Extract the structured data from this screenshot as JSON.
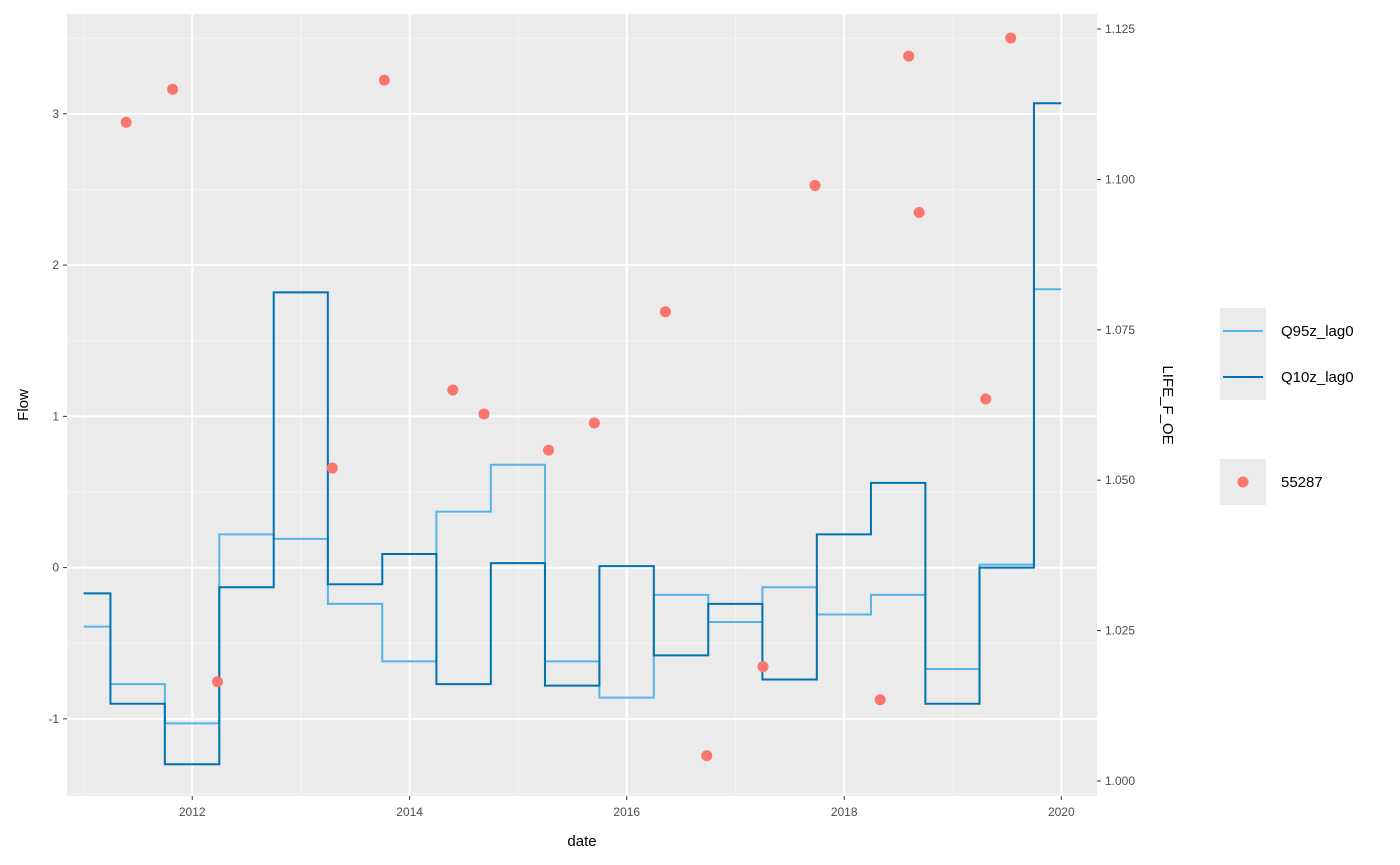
{
  "chart_data": {
    "type": "line",
    "xlabel": "date",
    "ylabel": "Flow",
    "y2label": "LIFE_F_OE",
    "x_range": [
      "2010-11-06",
      "2020-04-30"
    ],
    "x_ticks": [
      {
        "date": "2012-01-01",
        "label": "2012"
      },
      {
        "date": "2014-01-01",
        "label": "2014"
      },
      {
        "date": "2016-01-01",
        "label": "2016"
      },
      {
        "date": "2018-01-01",
        "label": "2018"
      },
      {
        "date": "2020-01-01",
        "label": "2020"
      }
    ],
    "x_minor_ticks": [
      "2011-01-01",
      "2013-01-01",
      "2015-01-01",
      "2017-01-01",
      "2019-01-01"
    ],
    "ylim": [
      -1.51,
      3.66
    ],
    "y_ticks": [
      {
        "value": -1,
        "label": "-1"
      },
      {
        "value": 0,
        "label": "0"
      },
      {
        "value": 1,
        "label": "1"
      },
      {
        "value": 2,
        "label": "2"
      },
      {
        "value": 3,
        "label": "3"
      }
    ],
    "y2lim": [
      0.9975,
      1.1275
    ],
    "y2_ticks": [
      {
        "value": 1.0,
        "label": "1.000"
      },
      {
        "value": 1.025,
        "label": "1.025"
      },
      {
        "value": 1.05,
        "label": "1.050"
      },
      {
        "value": 1.075,
        "label": "1.075"
      },
      {
        "value": 1.1,
        "label": "1.100"
      },
      {
        "value": 1.125,
        "label": "1.125"
      }
    ],
    "grid": true,
    "legend_position": "right",
    "series": [
      {
        "name": "Q95z_lag0",
        "type": "step",
        "axis": "left",
        "color": "#56B4E9",
        "points": [
          {
            "x": "2011-01-01",
            "y": -0.39
          },
          {
            "x": "2011-04-01",
            "y": -0.77
          },
          {
            "x": "2011-10-01",
            "y": -1.03
          },
          {
            "x": "2012-04-01",
            "y": 0.22
          },
          {
            "x": "2012-10-01",
            "y": 0.19
          },
          {
            "x": "2013-04-01",
            "y": -0.24
          },
          {
            "x": "2013-10-01",
            "y": -0.62
          },
          {
            "x": "2014-04-01",
            "y": 0.37
          },
          {
            "x": "2014-10-01",
            "y": 0.68
          },
          {
            "x": "2015-04-01",
            "y": -0.62
          },
          {
            "x": "2015-10-01",
            "y": -0.86
          },
          {
            "x": "2016-04-01",
            "y": -0.18
          },
          {
            "x": "2016-10-01",
            "y": -0.36
          },
          {
            "x": "2017-04-01",
            "y": -0.13
          },
          {
            "x": "2017-10-01",
            "y": -0.31
          },
          {
            "x": "2018-04-01",
            "y": -0.18
          },
          {
            "x": "2018-10-01",
            "y": -0.67
          },
          {
            "x": "2019-04-01",
            "y": 0.02
          },
          {
            "x": "2019-10-01",
            "y": 1.84
          },
          {
            "x": "2020-01-01",
            "y": 1.84
          }
        ]
      },
      {
        "name": "Q10z_lag0",
        "type": "step",
        "axis": "left",
        "color": "#0072B2",
        "points": [
          {
            "x": "2011-01-01",
            "y": -0.17
          },
          {
            "x": "2011-04-01",
            "y": -0.9
          },
          {
            "x": "2011-10-01",
            "y": -1.3
          },
          {
            "x": "2012-04-01",
            "y": -0.13
          },
          {
            "x": "2012-10-01",
            "y": 1.82
          },
          {
            "x": "2013-04-01",
            "y": -0.11
          },
          {
            "x": "2013-10-01",
            "y": 0.09
          },
          {
            "x": "2014-04-01",
            "y": -0.77
          },
          {
            "x": "2014-10-01",
            "y": 0.03
          },
          {
            "x": "2015-04-01",
            "y": -0.78
          },
          {
            "x": "2015-10-01",
            "y": 0.01
          },
          {
            "x": "2016-04-01",
            "y": -0.58
          },
          {
            "x": "2016-10-01",
            "y": -0.24
          },
          {
            "x": "2017-04-01",
            "y": -0.74
          },
          {
            "x": "2017-10-01",
            "y": 0.22
          },
          {
            "x": "2018-04-01",
            "y": 0.56
          },
          {
            "x": "2018-10-01",
            "y": -0.9
          },
          {
            "x": "2019-04-01",
            "y": 0.0
          },
          {
            "x": "2019-10-01",
            "y": 3.07
          },
          {
            "x": "2020-01-01",
            "y": 3.07
          }
        ]
      },
      {
        "name": "55287",
        "type": "scatter",
        "axis": "right",
        "color": "#F8766D",
        "points": [
          {
            "x": "2011-05-24",
            "y": 1.1095
          },
          {
            "x": "2011-10-27",
            "y": 1.115
          },
          {
            "x": "2012-03-26",
            "y": 1.0165
          },
          {
            "x": "2013-04-16",
            "y": 1.052
          },
          {
            "x": "2013-10-08",
            "y": 1.1165
          },
          {
            "x": "2014-05-26",
            "y": 1.065
          },
          {
            "x": "2014-09-08",
            "y": 1.061
          },
          {
            "x": "2015-04-13",
            "y": 1.055
          },
          {
            "x": "2015-09-14",
            "y": 1.0595
          },
          {
            "x": "2016-05-10",
            "y": 1.078
          },
          {
            "x": "2016-09-26",
            "y": 1.0042
          },
          {
            "x": "2017-04-03",
            "y": 1.019
          },
          {
            "x": "2017-09-25",
            "y": 1.099
          },
          {
            "x": "2018-05-02",
            "y": 1.0135
          },
          {
            "x": "2018-08-06",
            "y": 1.1205
          },
          {
            "x": "2018-09-10",
            "y": 1.0945
          },
          {
            "x": "2019-04-22",
            "y": 1.0635
          },
          {
            "x": "2019-07-15",
            "y": 1.1235
          }
        ]
      }
    ],
    "legend": {
      "line_entries": [
        {
          "label": "Q95z_lag0",
          "color": "#56B4E9"
        },
        {
          "label": "Q10z_lag0",
          "color": "#0072B2"
        }
      ],
      "point_entries": [
        {
          "label": "55287",
          "color": "#F8766D"
        }
      ]
    },
    "colors": {
      "panel_bg": "#EBEBEB",
      "grid_major": "#FFFFFF",
      "grid_minor": "#F5F5F5",
      "tick": "#333333",
      "legend_key_bg": "#EBEBEB"
    }
  }
}
